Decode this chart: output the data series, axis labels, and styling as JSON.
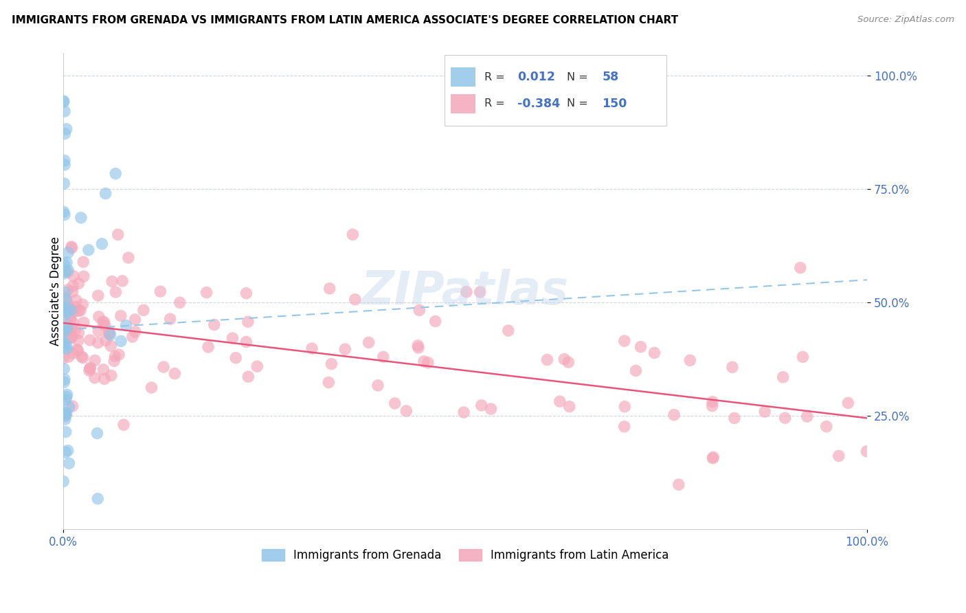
{
  "title": "IMMIGRANTS FROM GRENADA VS IMMIGRANTS FROM LATIN AMERICA ASSOCIATE'S DEGREE CORRELATION CHART",
  "source": "Source: ZipAtlas.com",
  "ylabel": "Associate's Degree",
  "legend_label1": "Immigrants from Grenada",
  "legend_label2": "Immigrants from Latin America",
  "blue_color": "#93c6e8",
  "pink_color": "#f4a7b9",
  "blue_line_color": "#93c6e8",
  "pink_line_color": "#e8547a",
  "text_color_blue": "#4472c4",
  "ytick_labels": [
    "25.0%",
    "50.0%",
    "75.0%",
    "100.0%"
  ],
  "ytick_values": [
    0.25,
    0.5,
    0.75,
    1.0
  ],
  "blue_line_x0": 0.0,
  "blue_line_x1": 1.0,
  "blue_line_y0": 0.44,
  "blue_line_y1": 0.55,
  "pink_line_x0": 0.0,
  "pink_line_x1": 1.0,
  "pink_line_y0": 0.455,
  "pink_line_y1": 0.245,
  "xlim": [
    0.0,
    1.0
  ],
  "ylim": [
    0.0,
    1.05
  ],
  "seed": 12345
}
